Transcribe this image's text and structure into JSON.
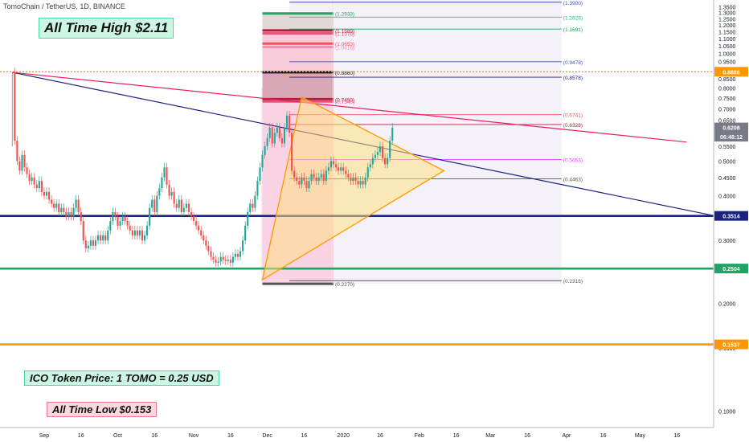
{
  "header": {
    "symbol": "TomoChain / TetherUS, 1D, BINANCE"
  },
  "callouts": {
    "ath": "All Time High $2.11",
    "ico": "ICO Token Price: 1 TOMO = 0.25 USD",
    "atl": "All Time Low $0.153"
  },
  "chart_data": {
    "type": "candlestick",
    "title": "TomoChain / TetherUS, 1D, BINANCE",
    "y_scale": "log",
    "ylim": [
      0.09,
      1.41
    ],
    "x_range": [
      "2019-08-14",
      "2020-05-31"
    ],
    "x_ticks": [
      {
        "label": "Sep",
        "date": "2019-09-01"
      },
      {
        "label": "16",
        "date": "2019-09-16"
      },
      {
        "label": "Oct",
        "date": "2019-10-01"
      },
      {
        "label": "16",
        "date": "2019-10-16"
      },
      {
        "label": "Nov",
        "date": "2019-11-01"
      },
      {
        "label": "16",
        "date": "2019-11-16"
      },
      {
        "label": "Dec",
        "date": "2019-12-01"
      },
      {
        "label": "16",
        "date": "2019-12-16"
      },
      {
        "label": "2020",
        "date": "2020-01-01"
      },
      {
        "label": "16",
        "date": "2020-01-16"
      },
      {
        "label": "Feb",
        "date": "2020-02-01"
      },
      {
        "label": "16",
        "date": "2020-02-16"
      },
      {
        "label": "Mar",
        "date": "2020-03-01"
      },
      {
        "label": "16",
        "date": "2020-03-16"
      },
      {
        "label": "Apr",
        "date": "2020-04-01"
      },
      {
        "label": "16",
        "date": "2020-04-16"
      },
      {
        "label": "May",
        "date": "2020-05-01"
      },
      {
        "label": "16",
        "date": "2020-05-16"
      }
    ],
    "y_ticks": [
      "0.1000",
      "0.1500",
      "0.2000",
      "0.2500",
      "0.3000",
      "0.3500",
      "0.4000",
      "0.4500",
      "0.5000",
      "0.5500",
      "0.6000",
      "0.6500",
      "0.7000",
      "0.7500",
      "0.8000",
      "0.8500",
      "0.9000",
      "0.9500",
      "1.0000",
      "1.0500",
      "1.1000",
      "1.1500",
      "1.2000",
      "1.2500",
      "1.3000",
      "1.3500"
    ],
    "y_tick_values": [
      0.1,
      0.15,
      0.2,
      0.25,
      0.3,
      0.35,
      0.4,
      0.45,
      0.5,
      0.55,
      0.6,
      0.65,
      0.7,
      0.75,
      0.8,
      0.85,
      0.9,
      0.95,
      1.0,
      1.05,
      1.1,
      1.15,
      1.2,
      1.25,
      1.3,
      1.35
    ],
    "price_labels": [
      {
        "value": 0.8886,
        "text": "0.8886",
        "color": "#ff9800"
      },
      {
        "value": 0.6208,
        "text": "0.6208",
        "color": "#787b86"
      },
      {
        "value": 0.585,
        "text": "06:48:12",
        "color": "#787b86"
      },
      {
        "value": 0.3514,
        "text": "0.3514",
        "color": "#1a237e"
      },
      {
        "value": 0.2504,
        "text": "0.2504",
        "color": "#1fa463"
      },
      {
        "value": 0.1537,
        "text": "0.1537",
        "color": "#ff9800"
      }
    ],
    "horizontal_levels": [
      {
        "value": 0.8886,
        "color": "#ff9800",
        "style": "dotted",
        "text": "0.8886"
      },
      {
        "value": 0.3514,
        "color": "#1a237e",
        "style": "solid",
        "text": "0.3514"
      },
      {
        "value": 0.2504,
        "color": "#1fa463",
        "style": "solid",
        "text": "0.2504"
      },
      {
        "value": 0.1537,
        "color": "#ff9800",
        "style": "solid",
        "text": "0.1537"
      }
    ],
    "fib_left": {
      "start": "2019-11-29",
      "end": "2019-12-28",
      "levels": [
        {
          "value": 1.2933,
          "text": "(1.2933)",
          "color": "#1fa463"
        },
        {
          "value": 1.1589,
          "text": "(1.1589)",
          "color": "#b71c3c"
        },
        {
          "value": 1.1378,
          "text": "(1.1378)",
          "color": "#e5557a"
        },
        {
          "value": 1.0653,
          "text": "(1.0653)",
          "color": "#f2515c"
        },
        {
          "value": 1.0416,
          "text": "(1.0416)",
          "color": "#f48fb1"
        },
        {
          "value": 0.886,
          "text": "(0.8860)",
          "color": "#111111"
        },
        {
          "value": 0.745,
          "text": "(0.7450)",
          "color": "#b71c3c"
        },
        {
          "value": 0.734,
          "text": "(0.7340)",
          "color": "#e5557a"
        },
        {
          "value": 0.227,
          "text": "(0.2270)",
          "color": "#555555"
        }
      ]
    },
    "fib_right": {
      "start": "2019-12-10",
      "end": "2020-03-30",
      "levels": [
        {
          "value": 1.39,
          "text": "(1.3900)",
          "color": "#3f51b5"
        },
        {
          "value": 1.2628,
          "text": "(1.2628)",
          "color": "#26c281"
        },
        {
          "value": 1.1691,
          "text": "(1.1691)",
          "color": "#1fa463"
        },
        {
          "value": 0.9478,
          "text": "(0.9478)",
          "color": "#3f51b5"
        },
        {
          "value": 0.8578,
          "text": "(0.8578)",
          "color": "#1a237e"
        },
        {
          "value": 0.6741,
          "text": "(0.6741)",
          "color": "#f2515c"
        },
        {
          "value": 0.6328,
          "text": "(0.6328)",
          "color": "#b71c3c"
        },
        {
          "value": 0.5053,
          "text": "(0.5053)",
          "color": "#e040fb"
        },
        {
          "value": 0.4463,
          "text": "(0.4463)",
          "color": "#555555"
        },
        {
          "value": 0.2316,
          "text": "(0.2316)",
          "color": "#555555"
        }
      ]
    },
    "trendlines": [
      {
        "name": "blue-downtrend",
        "from": {
          "date": "2019-08-19",
          "value": 0.885
        },
        "to": {
          "date": "2020-05-31",
          "value": 0.352
        },
        "color": "#1a237e"
      },
      {
        "name": "red-downtrend",
        "from": {
          "date": "2019-08-19",
          "value": 0.885
        },
        "to": {
          "date": "2020-05-20",
          "value": 0.565
        },
        "color": "#e91e63"
      }
    ],
    "triangle": {
      "points": [
        {
          "date": "2019-11-29",
          "value": 0.233
        },
        {
          "date": "2019-12-15",
          "value": 0.755
        },
        {
          "date": "2020-02-11",
          "value": 0.47
        }
      ],
      "fill": "#ffe082",
      "stroke": "#ff9800"
    },
    "candles": {
      "start": "2019-08-19",
      "colors": {
        "up": "#26a69a",
        "down": "#ef5350"
      },
      "closes": [
        0.885,
        0.57,
        0.5,
        0.47,
        0.52,
        0.48,
        0.46,
        0.44,
        0.45,
        0.43,
        0.42,
        0.44,
        0.41,
        0.4,
        0.41,
        0.39,
        0.38,
        0.37,
        0.38,
        0.36,
        0.37,
        0.36,
        0.35,
        0.36,
        0.35,
        0.37,
        0.39,
        0.36,
        0.34,
        0.3,
        0.285,
        0.29,
        0.3,
        0.29,
        0.3,
        0.31,
        0.3,
        0.31,
        0.3,
        0.32,
        0.34,
        0.36,
        0.35,
        0.33,
        0.34,
        0.35,
        0.34,
        0.33,
        0.32,
        0.31,
        0.32,
        0.31,
        0.32,
        0.3,
        0.31,
        0.33,
        0.37,
        0.39,
        0.36,
        0.4,
        0.42,
        0.45,
        0.48,
        0.43,
        0.4,
        0.41,
        0.38,
        0.37,
        0.39,
        0.36,
        0.37,
        0.38,
        0.36,
        0.35,
        0.34,
        0.33,
        0.32,
        0.31,
        0.3,
        0.29,
        0.28,
        0.27,
        0.265,
        0.26,
        0.262,
        0.27,
        0.265,
        0.263,
        0.265,
        0.26,
        0.27,
        0.275,
        0.27,
        0.28,
        0.3,
        0.33,
        0.36,
        0.38,
        0.37,
        0.4,
        0.44,
        0.48,
        0.52,
        0.55,
        0.58,
        0.62,
        0.56,
        0.6,
        0.62,
        0.58,
        0.56,
        0.62,
        0.67,
        0.6,
        0.47,
        0.45,
        0.44,
        0.43,
        0.45,
        0.44,
        0.42,
        0.44,
        0.46,
        0.45,
        0.44,
        0.45,
        0.46,
        0.44,
        0.47,
        0.48,
        0.5,
        0.49,
        0.48,
        0.47,
        0.48,
        0.47,
        0.46,
        0.45,
        0.44,
        0.45,
        0.44,
        0.43,
        0.44,
        0.43,
        0.45,
        0.48,
        0.49,
        0.51,
        0.52,
        0.53,
        0.55,
        0.51,
        0.49,
        0.51,
        0.57,
        0.62
      ]
    }
  }
}
